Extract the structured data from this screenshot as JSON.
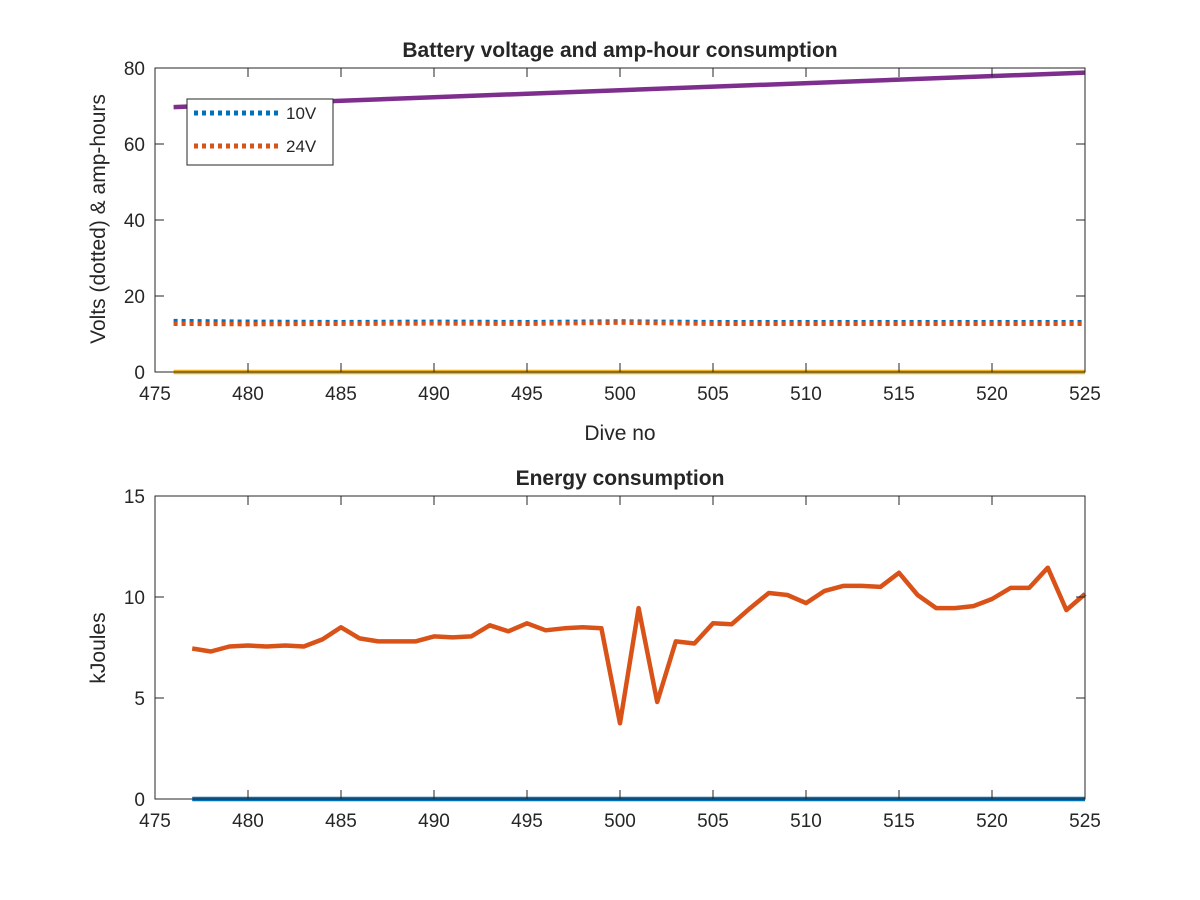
{
  "chart_data": [
    {
      "type": "line",
      "title": "Battery voltage and amp-hour consumption",
      "xlabel": "Dive no",
      "ylabel": "Volts (dotted) & amp-hours",
      "xlim": [
        475,
        525
      ],
      "ylim": [
        0,
        80
      ],
      "xticks": [
        475,
        480,
        485,
        490,
        495,
        500,
        505,
        510,
        515,
        520,
        525
      ],
      "yticks": [
        0,
        20,
        40,
        60,
        80
      ],
      "grid": false,
      "legend": {
        "placement": "top-left",
        "entries": [
          "10V",
          "24V"
        ]
      },
      "series": [
        {
          "name": "10V",
          "style": "dotted",
          "color": "#0072BD",
          "x": [
            476,
            480,
            485,
            490,
            495,
            500,
            505,
            510,
            515,
            520,
            525
          ],
          "y": [
            13.4,
            13.2,
            13.1,
            13.2,
            13.1,
            13.3,
            13.1,
            13.1,
            13.1,
            13.1,
            13.1
          ]
        },
        {
          "name": "24V",
          "style": "dotted",
          "color": "#D95319",
          "x": [
            476,
            480,
            485,
            490,
            495,
            500,
            505,
            510,
            515,
            520,
            525
          ],
          "y": [
            12.7,
            12.6,
            12.7,
            12.8,
            12.7,
            13.0,
            12.7,
            12.7,
            12.7,
            12.7,
            12.7
          ]
        },
        {
          "style": "solid",
          "color": "#7E2F8E",
          "x": [
            476,
            525
          ],
          "y": [
            69.7,
            78.8
          ]
        },
        {
          "style": "solid",
          "color": "#EDB120",
          "x": [
            476,
            525
          ],
          "y": [
            0,
            0
          ]
        }
      ]
    },
    {
      "type": "line",
      "title": "Energy consumption",
      "xlabel": "",
      "ylabel": "kJoules",
      "xlim": [
        475,
        525
      ],
      "ylim": [
        0,
        15
      ],
      "xticks": [
        475,
        480,
        485,
        490,
        495,
        500,
        505,
        510,
        515,
        520,
        525
      ],
      "yticks": [
        0,
        5,
        10,
        15
      ],
      "grid": false,
      "series": [
        {
          "style": "solid",
          "color": "#D95319",
          "x": [
            477,
            478,
            479,
            480,
            481,
            482,
            483,
            484,
            485,
            486,
            487,
            488,
            489,
            490,
            491,
            492,
            493,
            494,
            495,
            496,
            497,
            498,
            499,
            500,
            501,
            502,
            503,
            504,
            505,
            506,
            507,
            508,
            509,
            510,
            511,
            512,
            513,
            514,
            515,
            516,
            517,
            518,
            519,
            520,
            521,
            522,
            523,
            524,
            525
          ],
          "y": [
            7.45,
            7.3,
            7.55,
            7.6,
            7.55,
            7.6,
            7.55,
            7.9,
            8.5,
            7.95,
            7.8,
            7.8,
            7.8,
            8.05,
            8.0,
            8.05,
            8.6,
            8.3,
            8.7,
            8.35,
            8.45,
            8.5,
            8.45,
            3.75,
            9.45,
            4.8,
            7.8,
            7.7,
            8.7,
            8.65,
            9.45,
            10.2,
            10.1,
            9.7,
            10.3,
            10.55,
            10.55,
            10.5,
            11.2,
            10.1,
            9.45,
            9.45,
            9.55,
            9.9,
            10.45,
            10.45,
            11.45,
            9.35,
            10.15
          ]
        },
        {
          "style": "solid",
          "color": "#0072BD",
          "x": [
            477,
            525
          ],
          "y": [
            0,
            0
          ]
        }
      ]
    }
  ]
}
